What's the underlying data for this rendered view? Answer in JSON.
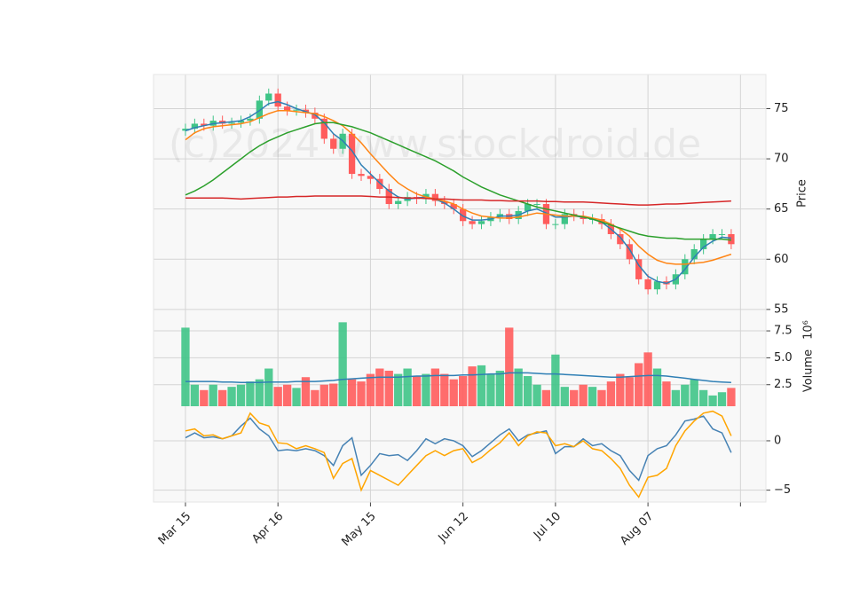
{
  "chart_data": {
    "type": "candlestick",
    "watermark": "(c)2024 www.stockdroid.de",
    "x": [
      0,
      2,
      4,
      6,
      8,
      10,
      12,
      14,
      16,
      18,
      20,
      22,
      24,
      26,
      28,
      30,
      32,
      34,
      36,
      38,
      40,
      42,
      44,
      46,
      48,
      50,
      52,
      54,
      56,
      58,
      60,
      62,
      64,
      66,
      68,
      70,
      72,
      74,
      76,
      78,
      80,
      82,
      84,
      86,
      88,
      90,
      92,
      94,
      96,
      98,
      100,
      102,
      104,
      106,
      108,
      110,
      112,
      114,
      116,
      118
    ],
    "xlim": [
      -6.9,
      125.5
    ],
    "xticks": [
      {
        "value": 0,
        "label": "Mar 15"
      },
      {
        "value": 20,
        "label": "Apr 16"
      },
      {
        "value": 40,
        "label": "May 15"
      },
      {
        "value": 60,
        "label": "Jun 12"
      },
      {
        "value": 80,
        "label": "Jul 10"
      },
      {
        "value": 100,
        "label": "Aug 07"
      },
      {
        "value": 120,
        "label": null
      }
    ],
    "open": [
      72.8,
      73.0,
      73.5,
      73.3,
      73.8,
      73.5,
      73.6,
      73.8,
      74.0,
      75.8,
      76.5,
      75.2,
      74.8,
      74.9,
      74.6,
      74.0,
      72.0,
      71.0,
      72.5,
      68.5,
      68.3,
      68.0,
      67.0,
      65.5,
      65.8,
      66.2,
      66.0,
      66.5,
      65.8,
      65.5,
      65.0,
      63.8,
      63.5,
      63.8,
      64.2,
      64.5,
      64.0,
      64.8,
      65.5,
      65.5,
      63.5,
      63.5,
      64.5,
      64.3,
      64.0,
      64.0,
      63.5,
      62.5,
      61.5,
      60.0,
      58.0,
      57.0,
      57.8,
      57.5,
      58.5,
      60.0,
      61.0,
      62.0,
      62.5,
      62.5
    ],
    "high": [
      73.5,
      74.0,
      74.0,
      74.3,
      74.3,
      74.1,
      74.3,
      74.5,
      76.3,
      77.0,
      77.0,
      75.7,
      75.4,
      75.4,
      75.1,
      74.5,
      72.5,
      73.0,
      73.0,
      69.0,
      68.8,
      68.5,
      67.5,
      66.3,
      66.7,
      66.7,
      67.0,
      67.0,
      66.3,
      66.0,
      65.5,
      64.3,
      64.3,
      64.7,
      65.0,
      65.0,
      65.3,
      66.0,
      66.0,
      66.0,
      64.0,
      65.0,
      65.0,
      64.8,
      64.5,
      64.5,
      64.0,
      63.0,
      62.0,
      60.5,
      58.5,
      58.3,
      58.3,
      59.0,
      60.5,
      61.5,
      62.5,
      63.0,
      63.0,
      63.0
    ],
    "low": [
      72.3,
      72.5,
      72.8,
      72.8,
      73.0,
      73.0,
      73.1,
      73.3,
      73.5,
      75.3,
      74.7,
      74.3,
      74.3,
      74.1,
      73.5,
      71.5,
      70.5,
      70.5,
      68.0,
      67.8,
      67.5,
      66.5,
      65.0,
      65.0,
      65.3,
      65.5,
      65.5,
      65.3,
      65.0,
      64.5,
      63.3,
      63.0,
      63.0,
      63.3,
      63.7,
      63.5,
      63.5,
      64.3,
      65.0,
      63.0,
      63.0,
      63.0,
      63.8,
      63.5,
      63.5,
      63.0,
      62.0,
      61.0,
      59.5,
      57.5,
      56.5,
      56.5,
      57.0,
      57.0,
      58.0,
      59.5,
      60.5,
      61.5,
      62.0,
      61.0
    ],
    "close": [
      73.0,
      73.5,
      73.3,
      73.8,
      73.5,
      73.6,
      73.8,
      74.0,
      75.8,
      76.5,
      75.2,
      74.8,
      74.9,
      74.6,
      74.0,
      72.0,
      71.0,
      72.5,
      68.5,
      68.3,
      68.0,
      67.0,
      65.5,
      65.8,
      66.2,
      66.0,
      66.5,
      65.8,
      65.5,
      65.0,
      63.8,
      63.5,
      63.8,
      64.2,
      64.5,
      64.0,
      64.8,
      65.5,
      65.5,
      63.5,
      63.5,
      64.5,
      64.3,
      64.0,
      64.0,
      63.5,
      62.5,
      61.5,
      60.0,
      58.0,
      57.0,
      57.8,
      57.5,
      58.5,
      60.0,
      61.0,
      62.0,
      62.5,
      62.5,
      61.5
    ],
    "up_color": "#3fc487",
    "down_color": "#ff5c5c",
    "ylabel": "Price",
    "ylim": [
      54.9,
      78.4
    ],
    "yticks": [
      55,
      60,
      65,
      70,
      75
    ],
    "grid": true,
    "moving_averages": [
      {
        "color": "#2f7fb5",
        "values": [
          72.8,
          73.1,
          73.3,
          73.5,
          73.6,
          73.7,
          73.8,
          74.2,
          74.8,
          75.5,
          75.7,
          75.4,
          75.0,
          74.7,
          74.4,
          73.6,
          72.5,
          71.8,
          70.8,
          69.4,
          68.5,
          67.6,
          66.8,
          66.2,
          66.0,
          66.1,
          66.2,
          66.0,
          65.6,
          65.0,
          64.3,
          63.9,
          63.9,
          64.0,
          64.3,
          64.3,
          64.4,
          64.8,
          65.0,
          64.6,
          64.2,
          64.2,
          64.3,
          64.2,
          64.0,
          63.7,
          63.0,
          62.2,
          61.0,
          59.4,
          58.3,
          57.8,
          57.6,
          58.0,
          59.0,
          60.2,
          61.2,
          61.8,
          62.2,
          62.1
        ]
      },
      {
        "color": "#ff8515",
        "values": [
          71.9,
          72.6,
          73.0,
          73.2,
          73.3,
          73.4,
          73.5,
          73.7,
          74.1,
          74.5,
          74.8,
          74.8,
          74.7,
          74.6,
          74.5,
          74.2,
          73.8,
          73.3,
          72.5,
          71.6,
          70.5,
          69.5,
          68.5,
          67.6,
          67.0,
          66.5,
          66.2,
          66.0,
          65.8,
          65.5,
          65.0,
          64.6,
          64.3,
          64.2,
          64.1,
          64.1,
          64.2,
          64.4,
          64.6,
          64.5,
          64.4,
          64.3,
          64.3,
          64.3,
          64.1,
          63.9,
          63.5,
          63.0,
          62.3,
          61.3,
          60.5,
          59.9,
          59.6,
          59.5,
          59.5,
          59.6,
          59.7,
          59.9,
          60.2,
          60.5
        ]
      },
      {
        "color": "#2ca02c",
        "values": [
          66.4,
          66.8,
          67.3,
          67.9,
          68.6,
          69.3,
          70.0,
          70.7,
          71.3,
          71.8,
          72.2,
          72.6,
          72.9,
          73.2,
          73.5,
          73.6,
          73.6,
          73.4,
          73.2,
          72.9,
          72.6,
          72.2,
          71.8,
          71.4,
          71.0,
          70.6,
          70.2,
          69.8,
          69.3,
          68.8,
          68.2,
          67.7,
          67.2,
          66.8,
          66.4,
          66.1,
          65.8,
          65.5,
          65.2,
          65.0,
          64.8,
          64.6,
          64.4,
          64.2,
          64.0,
          63.7,
          63.4,
          63.1,
          62.8,
          62.5,
          62.3,
          62.2,
          62.1,
          62.1,
          62.0,
          62.0,
          62.0,
          62.0,
          62.0,
          61.9
        ]
      },
      {
        "color": "#d62728",
        "values": [
          66.1,
          66.1,
          66.1,
          66.1,
          66.1,
          66.05,
          66.0,
          66.05,
          66.1,
          66.15,
          66.2,
          66.2,
          66.25,
          66.25,
          66.3,
          66.3,
          66.3,
          66.3,
          66.3,
          66.3,
          66.25,
          66.2,
          66.2,
          66.15,
          66.1,
          66.1,
          66.05,
          66.0,
          66.0,
          65.95,
          65.9,
          65.9,
          65.9,
          65.85,
          65.85,
          65.8,
          65.8,
          65.8,
          65.8,
          65.75,
          65.75,
          65.7,
          65.7,
          65.7,
          65.65,
          65.6,
          65.55,
          65.5,
          65.45,
          65.4,
          65.4,
          65.45,
          65.5,
          65.5,
          65.55,
          65.6,
          65.65,
          65.7,
          65.75,
          65.8
        ]
      }
    ],
    "volume": {
      "ylabel": "Volume",
      "offset_label": "10⁶",
      "ylim": [
        0.5,
        9.4
      ],
      "yticks": [
        2.5,
        {
          "value": 5,
          "label": "5.0"
        },
        7.5
      ],
      "values": [
        7.8,
        2.5,
        2.0,
        2.5,
        2.0,
        2.3,
        2.5,
        2.8,
        3.0,
        4.0,
        2.3,
        2.5,
        2.2,
        3.2,
        2.0,
        2.5,
        2.6,
        8.3,
        3.0,
        2.8,
        3.5,
        4.0,
        3.8,
        3.5,
        4.0,
        3.3,
        3.5,
        4.0,
        3.5,
        3.0,
        3.3,
        4.2,
        4.3,
        3.5,
        3.8,
        7.8,
        4.0,
        3.3,
        2.5,
        2.0,
        5.3,
        2.3,
        2.0,
        2.5,
        2.3,
        2.0,
        2.8,
        3.5,
        3.2,
        4.5,
        5.5,
        4.0,
        2.8,
        2.0,
        2.5,
        3.0,
        2.0,
        1.5,
        1.8,
        2.2
      ],
      "ma": {
        "color": "#2f7fb5",
        "values": [
          2.8,
          2.8,
          2.8,
          2.8,
          2.75,
          2.75,
          2.7,
          2.7,
          2.7,
          2.75,
          2.75,
          2.75,
          2.8,
          2.8,
          2.8,
          2.85,
          2.9,
          3.0,
          3.05,
          3.1,
          3.15,
          3.2,
          3.2,
          3.2,
          3.25,
          3.3,
          3.3,
          3.35,
          3.35,
          3.35,
          3.4,
          3.4,
          3.45,
          3.5,
          3.5,
          3.6,
          3.6,
          3.6,
          3.55,
          3.5,
          3.5,
          3.45,
          3.4,
          3.35,
          3.3,
          3.25,
          3.2,
          3.2,
          3.25,
          3.3,
          3.35,
          3.35,
          3.3,
          3.2,
          3.1,
          3.0,
          2.9,
          2.8,
          2.75,
          2.7
        ]
      }
    },
    "macd": {
      "ylim": [
        -6.2,
        3.5
      ],
      "yticks": [
        {
          "value": -5,
          "label": "−5"
        },
        0
      ],
      "series": [
        {
          "color": "#4682b4",
          "values": [
            0.3,
            0.8,
            0.3,
            0.4,
            0.2,
            0.5,
            1.5,
            2.3,
            1.2,
            0.5,
            -1.0,
            -0.9,
            -1.0,
            -0.8,
            -1.0,
            -1.5,
            -2.5,
            -0.5,
            0.3,
            -3.5,
            -2.5,
            -1.3,
            -1.5,
            -1.4,
            -2.0,
            -1.0,
            0.2,
            -0.3,
            0.2,
            0.0,
            -0.5,
            -1.6,
            -1.0,
            -0.2,
            0.6,
            1.2,
            0.0,
            0.6,
            0.8,
            1.0,
            -1.3,
            -0.6,
            -0.6,
            0.2,
            -0.5,
            -0.3,
            -1.0,
            -1.5,
            -3.0,
            -4.0,
            -1.5,
            -0.8,
            -0.5,
            0.6,
            2.0,
            2.2,
            2.5,
            1.2,
            0.8,
            -1.2
          ]
        },
        {
          "color": "#ffa500",
          "values": [
            1.0,
            1.2,
            0.5,
            0.6,
            0.2,
            0.5,
            0.8,
            2.8,
            1.8,
            1.5,
            -0.2,
            -0.3,
            -0.8,
            -0.5,
            -0.8,
            -1.2,
            -3.8,
            -2.3,
            -1.8,
            -5.0,
            -3.0,
            -3.5,
            -4.0,
            -4.5,
            -3.5,
            -2.5,
            -1.5,
            -1.0,
            -1.5,
            -1.0,
            -0.8,
            -2.2,
            -1.7,
            -0.9,
            -0.2,
            0.8,
            -0.5,
            0.5,
            0.9,
            0.8,
            -0.5,
            -0.3,
            -0.6,
            0.0,
            -0.8,
            -1.0,
            -1.8,
            -2.8,
            -4.5,
            -5.7,
            -3.7,
            -3.5,
            -2.8,
            -0.5,
            1.0,
            2.0,
            2.8,
            3.0,
            2.5,
            0.5
          ]
        }
      ]
    }
  }
}
